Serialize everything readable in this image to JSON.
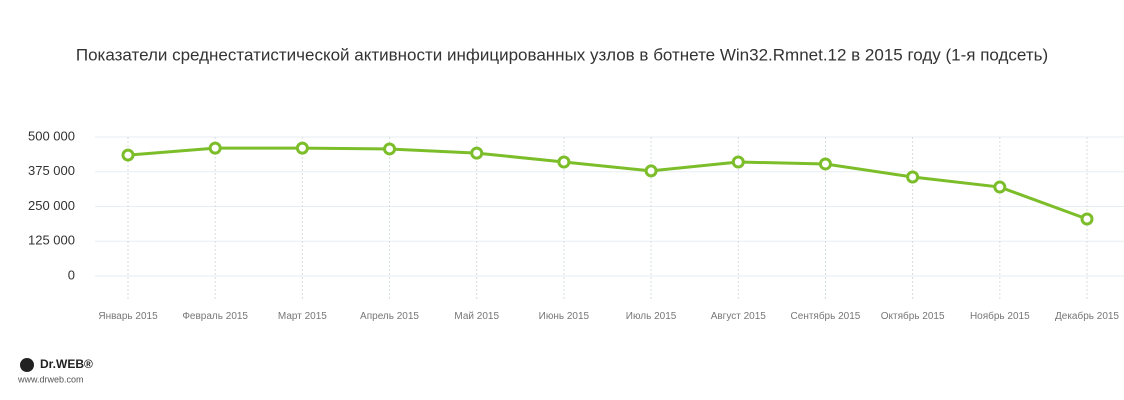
{
  "chart_data": {
    "type": "line",
    "title": "Показатели среднестатистической активности инфицированных узлов в ботнете Win32.Rmnet.12 в 2015 году (1-я подсеть)",
    "categories": [
      "Январь 2015",
      "Февраль 2015",
      "Март 2015",
      "Апрель 2015",
      "Май 2015",
      "Июнь 2015",
      "Июль 2015",
      "Август 2015",
      "Сентябрь 2015",
      "Октябрь 2015",
      "Ноябрь 2015",
      "Декабрь 2015"
    ],
    "series": [
      {
        "color": "#7cbd2a",
        "values": [
          435000,
          460000,
          460000,
          457000,
          442000,
          410000,
          378000,
          410000,
          403000,
          356000,
          320000,
          205000
        ]
      }
    ],
    "ylim": [
      0,
      500000
    ],
    "yticks": [
      0,
      {
        "value": 125000,
        "label": "125 000"
      },
      {
        "value": 250000,
        "label": "250 000"
      },
      {
        "value": 375000,
        "label": "375 000"
      },
      {
        "value": 500000,
        "label": "500 000"
      }
    ],
    "grid": true
  },
  "logo": {
    "name": "Dr.WEB®",
    "url": "www.drweb.com"
  }
}
